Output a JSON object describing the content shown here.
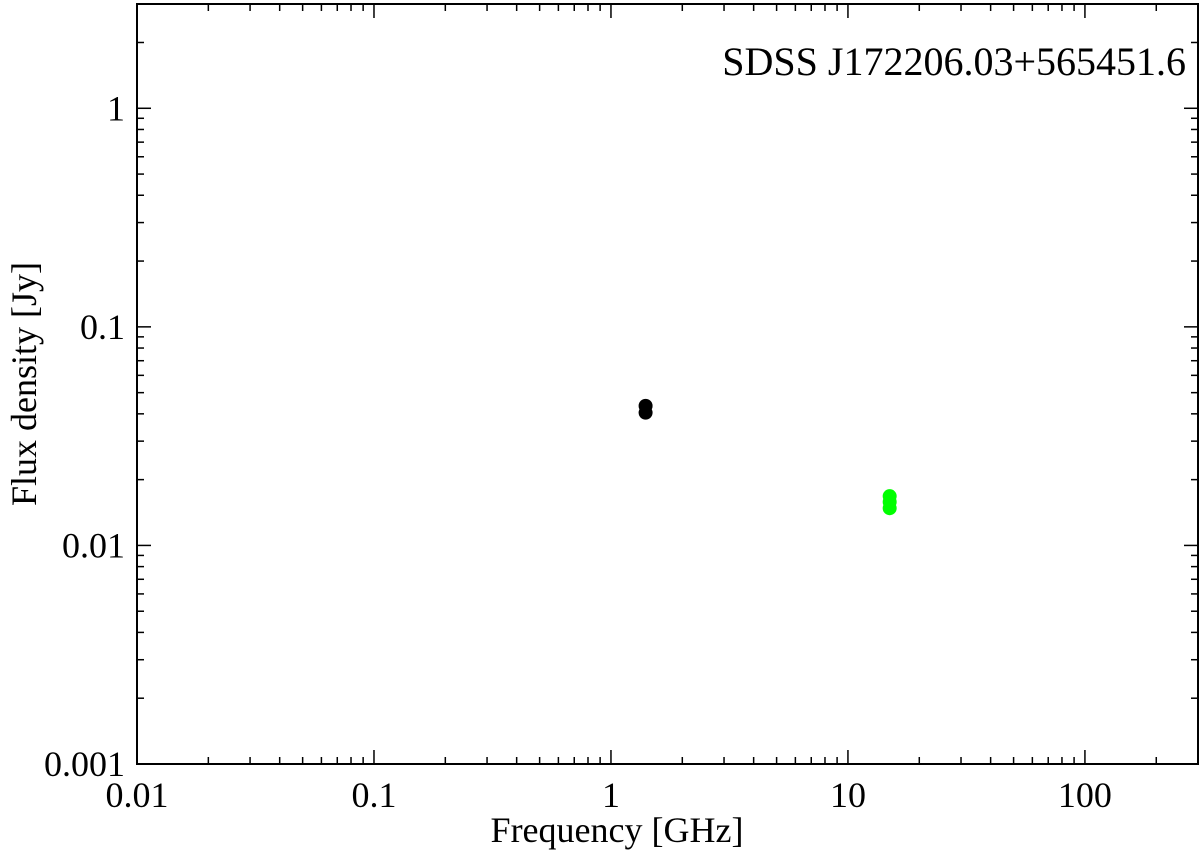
{
  "chart_data": {
    "type": "scatter",
    "title": "SDSS J172206.03+565451.6",
    "xlabel": "Frequency [GHz]",
    "ylabel": "Flux density [Jy]",
    "xscale": "log",
    "yscale": "log",
    "xlim": [
      0.01,
      300
    ],
    "ylim": [
      0.001,
      3
    ],
    "xticks": [
      {
        "value": 0.01,
        "label": "0.01"
      },
      {
        "value": 0.1,
        "label": "0.1"
      },
      {
        "value": 1,
        "label": "1"
      },
      {
        "value": 10,
        "label": "10"
      },
      {
        "value": 100,
        "label": "100"
      }
    ],
    "yticks": [
      {
        "value": 0.001,
        "label": "0.001"
      },
      {
        "value": 0.01,
        "label": "0.01"
      },
      {
        "value": 0.1,
        "label": "0.1"
      },
      {
        "value": 1,
        "label": "1"
      }
    ],
    "grid": false,
    "series": [
      {
        "color": "#000000",
        "points": [
          {
            "x": 1.4,
            "y": 0.0435
          },
          {
            "x": 1.4,
            "y": 0.0405
          }
        ]
      },
      {
        "color": "#00ff00",
        "points": [
          {
            "x": 15,
            "y": 0.0168
          },
          {
            "x": 15,
            "y": 0.0158
          },
          {
            "x": 15,
            "y": 0.0148
          }
        ]
      }
    ]
  }
}
